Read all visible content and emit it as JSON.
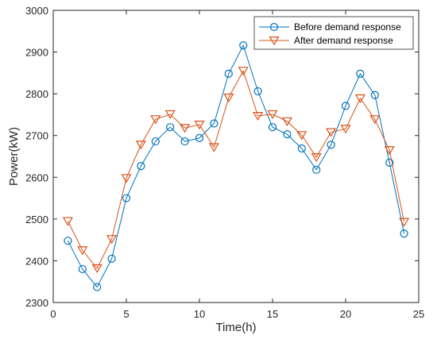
{
  "chart_data": {
    "type": "line",
    "xlabel": "Time(h)",
    "ylabel": "Power(kW)",
    "xlim": [
      0,
      25
    ],
    "ylim": [
      2300,
      3000
    ],
    "xticks": [
      0,
      5,
      10,
      15,
      20,
      25
    ],
    "yticks": [
      2300,
      2400,
      2500,
      2600,
      2700,
      2800,
      2900,
      3000
    ],
    "grid": false,
    "legend_position": "top-right",
    "x": [
      1,
      2,
      3,
      4,
      5,
      6,
      7,
      8,
      9,
      10,
      11,
      12,
      13,
      14,
      15,
      16,
      17,
      18,
      19,
      20,
      21,
      22,
      23,
      24
    ],
    "series": [
      {
        "name": "Before demand response",
        "color": "#0072BD",
        "marker": "circle",
        "values": [
          2448,
          2380,
          2337,
          2405,
          2550,
          2627,
          2686,
          2720,
          2686,
          2694,
          2729,
          2848,
          2916,
          2806,
          2720,
          2703,
          2669,
          2618,
          2678,
          2771,
          2848,
          2797,
          2635,
          2465
        ]
      },
      {
        "name": "After demand response",
        "color": "#D95319",
        "marker": "triangle-down",
        "values": [
          2495,
          2425,
          2382,
          2452,
          2598,
          2678,
          2739,
          2751,
          2718,
          2726,
          2672,
          2791,
          2855,
          2747,
          2751,
          2734,
          2701,
          2648,
          2708,
          2716,
          2789,
          2739,
          2665,
          2493
        ]
      }
    ]
  }
}
